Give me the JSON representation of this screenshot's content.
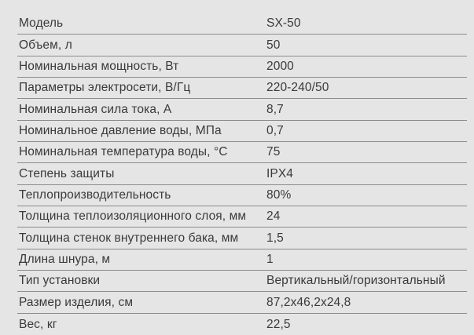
{
  "page": {
    "background_color": "#e5e5e5",
    "text_color": "#3a3a3a",
    "divider_color": "#8c8c8c"
  },
  "table": {
    "rows": [
      {
        "label": "Модель",
        "value": "SX-50"
      },
      {
        "label": "Объем, л",
        "value": "50"
      },
      {
        "label": "Номинальная мощность, Вт",
        "value": "2000"
      },
      {
        "label": "Параметры электросети, В/Гц",
        "value": "220-240/50"
      },
      {
        "label": "Номинальная сила тока, А",
        "value": "8,7"
      },
      {
        "label": "Номинальное давление воды, МПа",
        "value": "0,7"
      },
      {
        "label": "Номинальная температура воды, °С",
        "value": "75"
      },
      {
        "label": "Степень защиты",
        "value": "IPX4"
      },
      {
        "label": "Теплопроизводительность",
        "value": "80%"
      },
      {
        "label": "Толщина теплоизоляционного слоя, мм",
        "value": "24"
      },
      {
        "label": "Толщина стенок внутреннего бака, мм",
        "value": "1,5"
      },
      {
        "label": "Длина шнура, м",
        "value": "1"
      },
      {
        "label": "Тип установки",
        "value": "Вертикальный/горизонтальный"
      },
      {
        "label": "Размер изделия, см",
        "value": "87,2x46,2x24,8"
      },
      {
        "label": "Вес, кг",
        "value": "22,5"
      }
    ]
  }
}
